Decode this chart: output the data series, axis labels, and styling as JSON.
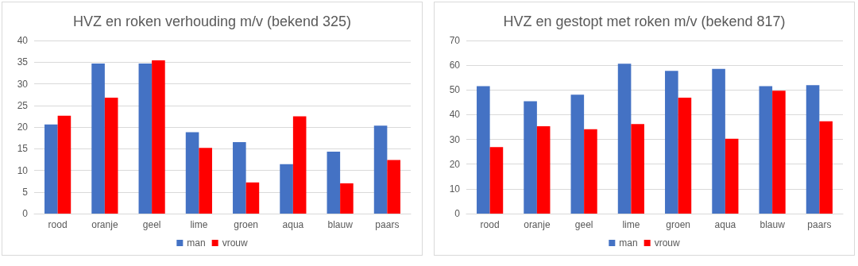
{
  "chart_data": [
    {
      "type": "bar",
      "title": "HVZ en roken verhouding m/v (bekend 325)",
      "categories": [
        "rood",
        "oranje",
        "geel",
        "lime",
        "groen",
        "aqua",
        "blauw",
        "paars"
      ],
      "series": [
        {
          "name": "man",
          "color": "#4472c4",
          "values": [
            20.6,
            34.7,
            34.7,
            18.8,
            16.5,
            11.4,
            14.3,
            20.3
          ]
        },
        {
          "name": "vrouw",
          "color": "#ff0000",
          "values": [
            22.6,
            26.8,
            35.4,
            15.2,
            7.2,
            22.5,
            7.0,
            12.4
          ]
        }
      ],
      "ylim": [
        0,
        40
      ],
      "yticks": [
        0,
        5,
        10,
        15,
        20,
        25,
        30,
        35,
        40
      ],
      "grid": "y",
      "legend": "bottom"
    },
    {
      "type": "bar",
      "title": "HVZ en gestopt met roken m/v (bekend 817)",
      "categories": [
        "rood",
        "oranje",
        "geel",
        "lime",
        "groen",
        "aqua",
        "blauw",
        "paars"
      ],
      "series": [
        {
          "name": "man",
          "color": "#4472c4",
          "values": [
            51.5,
            45.4,
            48.1,
            60.6,
            57.7,
            58.5,
            51.5,
            51.9
          ]
        },
        {
          "name": "vrouw",
          "color": "#ff0000",
          "values": [
            26.9,
            35.3,
            34.1,
            36.2,
            46.9,
            30.3,
            49.7,
            37.3
          ]
        }
      ],
      "ylim": [
        0,
        70
      ],
      "yticks": [
        0,
        10,
        20,
        30,
        40,
        50,
        60,
        70
      ],
      "grid": "y",
      "legend": "bottom"
    }
  ]
}
